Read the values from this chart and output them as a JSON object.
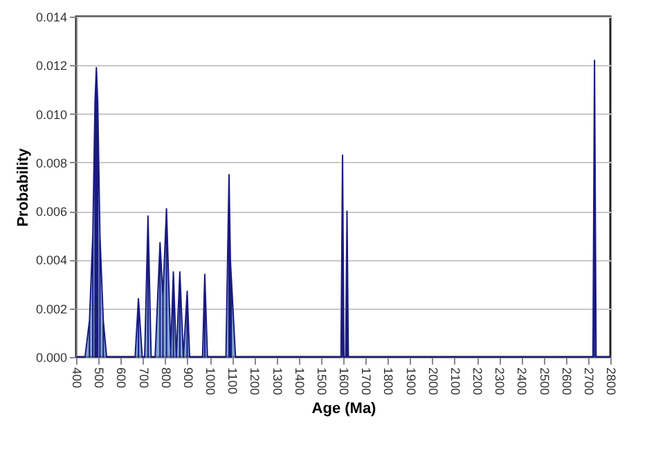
{
  "chart_data": {
    "type": "area",
    "xlabel": "Age (Ma)",
    "ylabel": "Probability",
    "x": [
      400,
      440,
      460,
      475,
      485,
      491,
      497,
      507,
      522,
      537,
      665,
      680,
      697,
      708,
      723,
      737,
      755,
      777,
      790,
      806,
      825,
      837,
      850,
      866,
      882,
      899,
      910,
      968,
      978,
      990,
      1073,
      1087,
      1093,
      1097,
      1116,
      1590,
      1597,
      1603,
      1611,
      1617,
      1623,
      2722,
      2729,
      2736,
      2800
    ],
    "series": [
      {
        "color": "#4f81bd",
        "values": [
          0,
          0,
          0.0015,
          0.005,
          0.0105,
          0.0119,
          0.0105,
          0.005,
          0.0015,
          0,
          0,
          0.0024,
          0,
          0,
          0.0058,
          0,
          0,
          0.0047,
          0.0025,
          0.0061,
          0.0003,
          0.0035,
          0,
          0.0035,
          0,
          0.0027,
          0,
          0,
          0.0034,
          0,
          0,
          0.0075,
          0.004,
          0.0033,
          0,
          0,
          0.0083,
          0,
          0,
          0.006,
          0,
          0,
          0.0122,
          0,
          0
        ]
      }
    ],
    "xlim": [
      400,
      2800
    ],
    "xticks": [
      400,
      500,
      600,
      700,
      800,
      900,
      1000,
      1100,
      1200,
      1300,
      1400,
      1500,
      1600,
      1700,
      1800,
      1900,
      2000,
      2100,
      2200,
      2300,
      2400,
      2500,
      2600,
      2700,
      2800
    ],
    "ylim": [
      0,
      0.014
    ],
    "yticks": [
      {
        "value": 0,
        "label": "0.000"
      },
      {
        "value": 0.002,
        "label": "0.002"
      },
      {
        "value": 0.004,
        "label": "0.004"
      },
      {
        "value": 0.006,
        "label": "0.006"
      },
      {
        "value": 0.008,
        "label": "0.008"
      },
      {
        "value": 0.01,
        "label": "0.010"
      },
      {
        "value": 0.012,
        "label": "0.012"
      },
      {
        "value": 0.014,
        "label": "0.014"
      }
    ],
    "grid": "y"
  }
}
